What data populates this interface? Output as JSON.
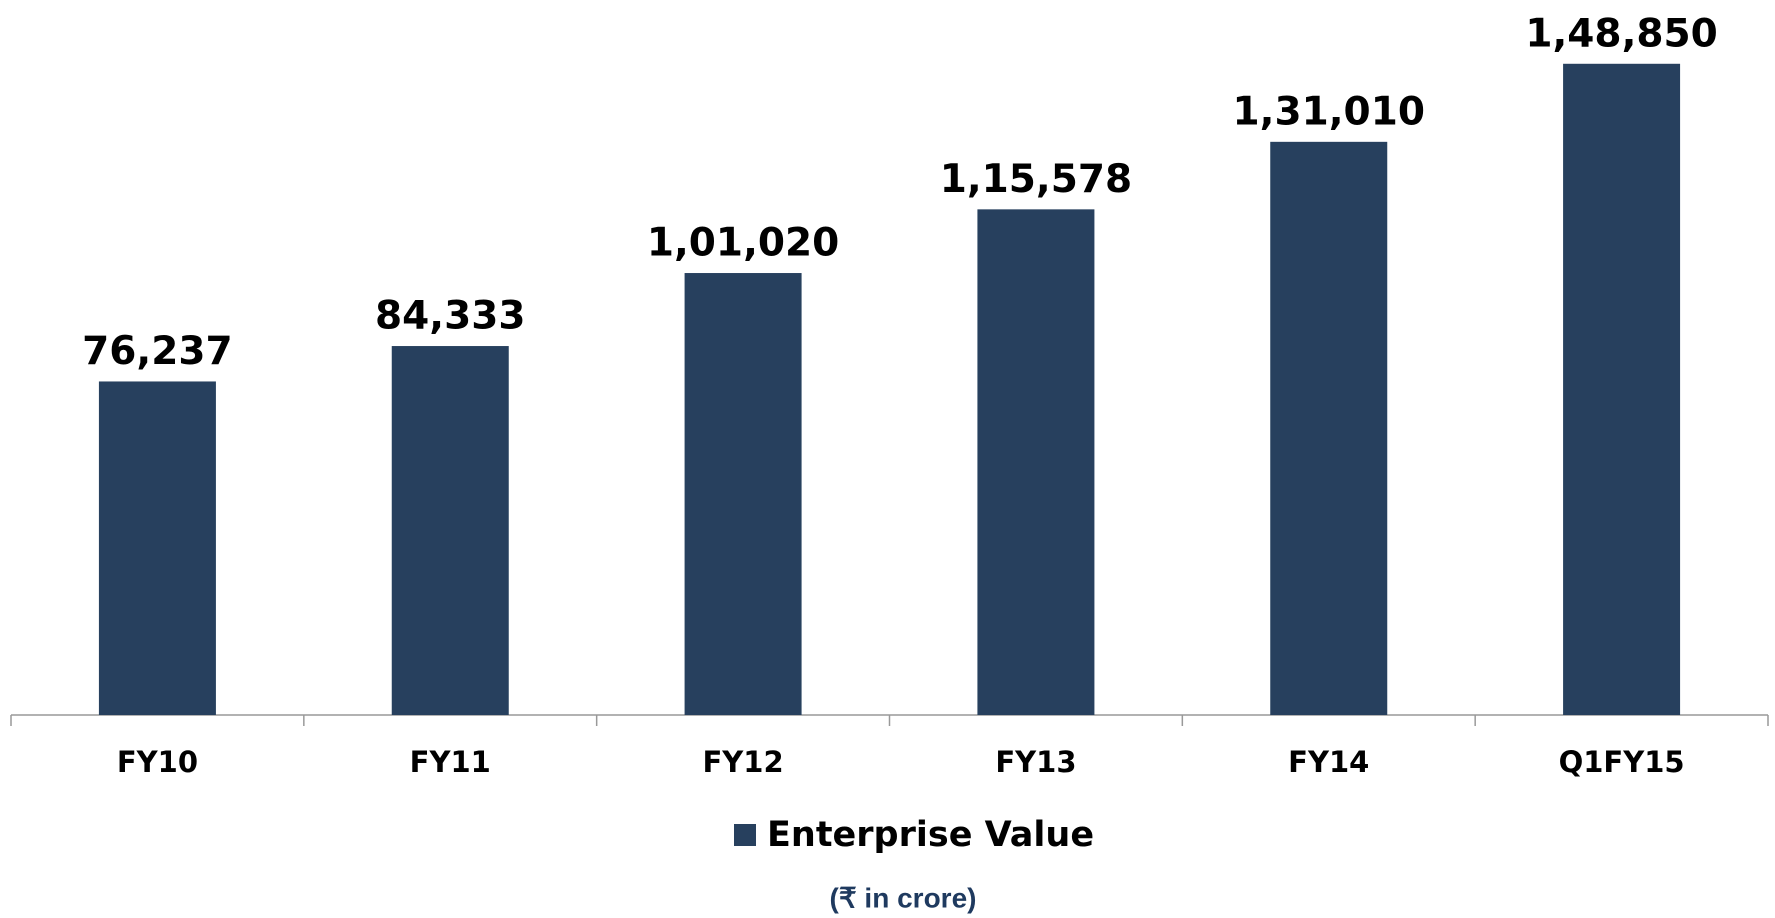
{
  "chart_data": {
    "type": "bar",
    "categories": [
      "FY10",
      "FY11",
      "FY12",
      "FY13",
      "FY14",
      "Q1FY15"
    ],
    "series": [
      {
        "name": "Enterprise Value",
        "color": "#27405e",
        "values": [
          76237,
          84333,
          101020,
          115578,
          131010,
          148850
        ],
        "value_labels": [
          "76,237",
          "84,333",
          "1,01,020",
          "1,15,578",
          "1,31,010",
          "1,48,850"
        ]
      }
    ],
    "note": "(₹ in crore)",
    "ylim": [
      0,
      160000
    ],
    "legend": "bottom"
  }
}
